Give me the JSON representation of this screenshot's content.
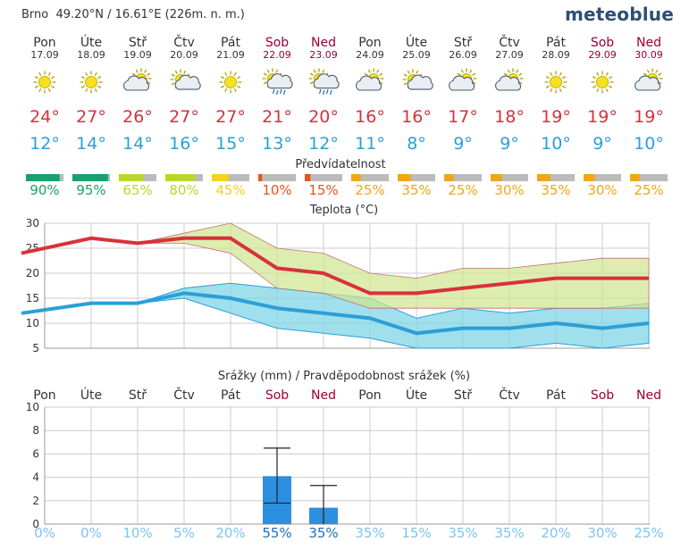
{
  "header": {
    "location": "Brno  49.20°N / 16.61°E (226m. n. m.)",
    "logo": "meteoblue"
  },
  "colors": {
    "weekday": "#333333",
    "weekend": "#990033",
    "max": "#d8313c",
    "min": "#2b9fd8"
  },
  "days": [
    {
      "name": "Pon",
      "date": "17.09",
      "weekend": false,
      "icon": "sun-icon",
      "max": "24°",
      "min": "12°",
      "pred": "90%"
    },
    {
      "name": "Úte",
      "date": "18.09",
      "weekend": false,
      "icon": "sun-icon",
      "max": "27°",
      "min": "14°",
      "pred": "95%"
    },
    {
      "name": "Stř",
      "date": "19.09",
      "weekend": false,
      "icon": "partly-cloudy-icon",
      "max": "26°",
      "min": "14°",
      "pred": "65%"
    },
    {
      "name": "Čtv",
      "date": "20.09",
      "weekend": false,
      "icon": "sun-cloud-icon",
      "max": "27°",
      "min": "16°",
      "pred": "80%"
    },
    {
      "name": "Pát",
      "date": "21.09",
      "weekend": false,
      "icon": "sun-icon",
      "max": "27°",
      "min": "15°",
      "pred": "45%"
    },
    {
      "name": "Sob",
      "date": "22.09",
      "weekend": true,
      "icon": "sun-cloud-rain-icon",
      "max": "21°",
      "min": "13°",
      "pred": "10%"
    },
    {
      "name": "Ned",
      "date": "23.09",
      "weekend": true,
      "icon": "sun-cloud-rain-icon",
      "max": "20°",
      "min": "12°",
      "pred": "15%"
    },
    {
      "name": "Pon",
      "date": "24.09",
      "weekend": false,
      "icon": "partly-cloudy-icon",
      "max": "16°",
      "min": "11°",
      "pred": "25%"
    },
    {
      "name": "Úte",
      "date": "25.09",
      "weekend": false,
      "icon": "sun-cloud-icon",
      "max": "16°",
      "min": "8°",
      "pred": "35%"
    },
    {
      "name": "Stř",
      "date": "26.09",
      "weekend": false,
      "icon": "partly-cloudy-icon",
      "max": "17°",
      "min": "9°",
      "pred": "25%"
    },
    {
      "name": "Čtv",
      "date": "27.09",
      "weekend": false,
      "icon": "partly-cloudy-icon",
      "max": "18°",
      "min": "9°",
      "pred": "30%"
    },
    {
      "name": "Pát",
      "date": "28.09",
      "weekend": false,
      "icon": "sun-icon",
      "max": "19°",
      "min": "10°",
      "pred": "35%"
    },
    {
      "name": "Sob",
      "date": "29.09",
      "weekend": true,
      "icon": "sun-icon",
      "max": "19°",
      "min": "9°",
      "pred": "30%"
    },
    {
      "name": "Ned",
      "date": "30.09",
      "weekend": true,
      "icon": "partly-cloudy-icon",
      "max": "19°",
      "min": "10°",
      "pred": "25%"
    }
  ],
  "predictability": {
    "title": "Předvídatelnost",
    "values": [
      90,
      95,
      65,
      80,
      45,
      10,
      15,
      25,
      35,
      25,
      30,
      35,
      30,
      25
    ]
  },
  "chart_data": [
    {
      "type": "line",
      "title": "Teplota (°C)",
      "ylim": [
        5,
        30
      ],
      "yticks": [
        5,
        10,
        15,
        20,
        25,
        30
      ],
      "x": [
        0,
        1,
        2,
        3,
        4,
        5,
        6,
        7,
        8,
        9,
        10,
        11,
        12,
        13
      ],
      "series": [
        {
          "name": "max",
          "values": [
            24,
            27,
            26,
            27,
            27,
            21,
            20,
            16,
            16,
            17,
            18,
            19,
            19,
            19
          ],
          "band_low": [
            24,
            27,
            26,
            26,
            24,
            17,
            16,
            13,
            13,
            13,
            13,
            13,
            13,
            13
          ],
          "band_high": [
            24,
            27,
            26,
            28,
            30,
            25,
            24,
            20,
            19,
            21,
            21,
            22,
            23,
            23
          ]
        },
        {
          "name": "min",
          "values": [
            12,
            14,
            14,
            16,
            15,
            13,
            12,
            11,
            8,
            9,
            9,
            10,
            9,
            10
          ],
          "band_low": [
            12,
            14,
            14,
            15,
            12,
            9,
            8,
            7,
            5,
            5,
            5,
            6,
            5,
            6
          ],
          "band_high": [
            12,
            14,
            14,
            17,
            18,
            17,
            16,
            15,
            11,
            13,
            12,
            13,
            13,
            14
          ]
        }
      ]
    },
    {
      "type": "bar",
      "title": "Srážky (mm) / Pravděpodobnost srážek (%)",
      "categories": [
        "Pon",
        "Úte",
        "Stř",
        "Čtv",
        "Pát",
        "Sob",
        "Ned",
        "Pon",
        "Úte",
        "Stř",
        "Čtv",
        "Pát",
        "Sob",
        "Ned"
      ],
      "weekend": [
        false,
        false,
        false,
        false,
        false,
        true,
        true,
        false,
        false,
        false,
        false,
        false,
        true,
        true
      ],
      "ylim": [
        0,
        10
      ],
      "yticks": [
        0,
        2,
        4,
        6,
        8,
        10
      ],
      "values": [
        0,
        0,
        0,
        0,
        0,
        4.1,
        1.4,
        0,
        0,
        0,
        0,
        0,
        0,
        0
      ],
      "error_low": [
        0,
        0,
        0,
        0,
        0,
        1.8,
        0,
        0,
        0,
        0,
        0,
        0,
        0,
        0
      ],
      "error_high": [
        0,
        0,
        0,
        0,
        0,
        6.5,
        3.3,
        0,
        0,
        0,
        0,
        0,
        0,
        0
      ],
      "probability": [
        "0%",
        "0%",
        "10%",
        "5%",
        "20%",
        "55%",
        "35%",
        "35%",
        "15%",
        "35%",
        "35%",
        "20%",
        "30%",
        "25%"
      ],
      "probability_bold": [
        false,
        false,
        false,
        false,
        false,
        true,
        true,
        false,
        false,
        false,
        false,
        false,
        false,
        false
      ]
    }
  ]
}
